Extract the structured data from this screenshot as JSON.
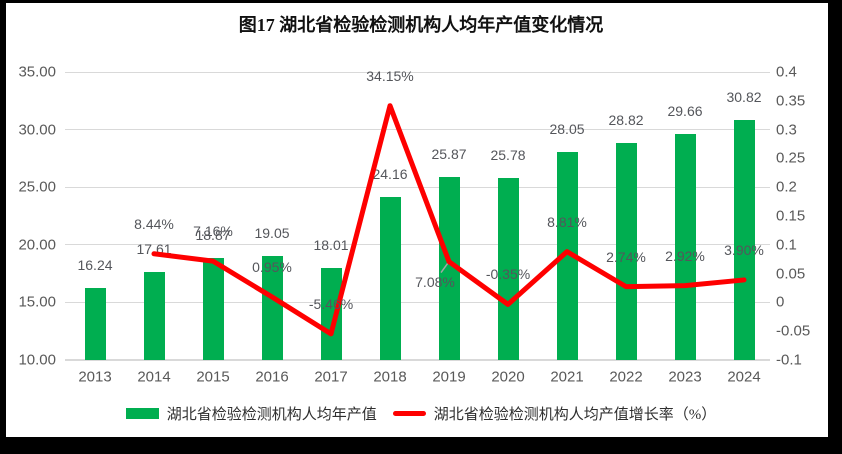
{
  "frame": {
    "background": "#000000",
    "panel_background": "#ffffff"
  },
  "title": "图17 湖北省检验检测机构人均年产值变化情况",
  "legend": {
    "items": [
      {
        "label": "湖北省检验检测机构人均年产值",
        "swatch": "bar",
        "color": "#00ae50"
      },
      {
        "label": "湖北省检验检测机构人均产值增长率（%）",
        "swatch": "line",
        "color": "#fe0000"
      }
    ],
    "position": "bottom"
  },
  "colors": {
    "bar": "#00ae50",
    "line": "#fe0000",
    "grid": "#d9d9d9",
    "axis_text": "#595959",
    "data_label_text": "#54565b",
    "leader_line": "#a6a6a6"
  },
  "chart_data": {
    "type": "bar",
    "subtype": "bar+line combo, dual axis",
    "title": "图17 湖北省检验检测机构人均年产值变化情况",
    "categories": [
      "2013",
      "2014",
      "2015",
      "2016",
      "2017",
      "2018",
      "2019",
      "2020",
      "2021",
      "2022",
      "2023",
      "2024"
    ],
    "series": [
      {
        "name": "湖北省检验检测机构人均年产值",
        "type": "bar",
        "axis": "left",
        "color": "#00ae50",
        "values": [
          16.24,
          17.61,
          18.87,
          19.05,
          18.01,
          24.16,
          25.87,
          25.78,
          28.05,
          28.82,
          29.66,
          30.82
        ],
        "labels": [
          "16.24",
          "17.61",
          "18.87",
          "19.05",
          "18.01",
          "24.16",
          "25.87",
          "25.78",
          "28.05",
          "28.82",
          "29.66",
          "30.82"
        ]
      },
      {
        "name": "湖北省检验检测机构人均产值增长率（%）",
        "type": "line",
        "axis": "right",
        "color": "#fe0000",
        "start_category_index": 1,
        "values": [
          0.0844,
          0.0716,
          0.0095,
          -0.0546,
          0.3415,
          0.0708,
          -0.0035,
          0.0881,
          0.0274,
          0.0292,
          0.039
        ],
        "labels": [
          "8.44%",
          "7.16%",
          "0.95%",
          "-5.46%",
          "34.15%",
          "7.08%",
          "-0.35%",
          "8.81%",
          "2.74%",
          "2.92%",
          "3.90%"
        ],
        "label_placements": {
          "5": "below-left-leader"
        }
      }
    ],
    "left_axis": {
      "min": 10,
      "max": 35,
      "step": 5,
      "ticks": [
        "35.00",
        "30.00",
        "25.00",
        "20.00",
        "15.00",
        "10.00"
      ],
      "tick_values": [
        35,
        30,
        25,
        20,
        15,
        10
      ]
    },
    "right_axis": {
      "min": -0.1,
      "max": 0.4,
      "step": 0.05,
      "ticks": [
        "0.4",
        "0.35",
        "0.3",
        "0.25",
        "0.2",
        "0.15",
        "0.1",
        "0.05",
        "0",
        "-0.05",
        "-0.1"
      ],
      "tick_values": [
        0.4,
        0.35,
        0.3,
        0.25,
        0.2,
        0.15,
        0.1,
        0.05,
        0,
        -0.05,
        -0.1
      ]
    },
    "grid": "horizontal gridlines at left-axis major steps",
    "legend_position": "bottom"
  }
}
